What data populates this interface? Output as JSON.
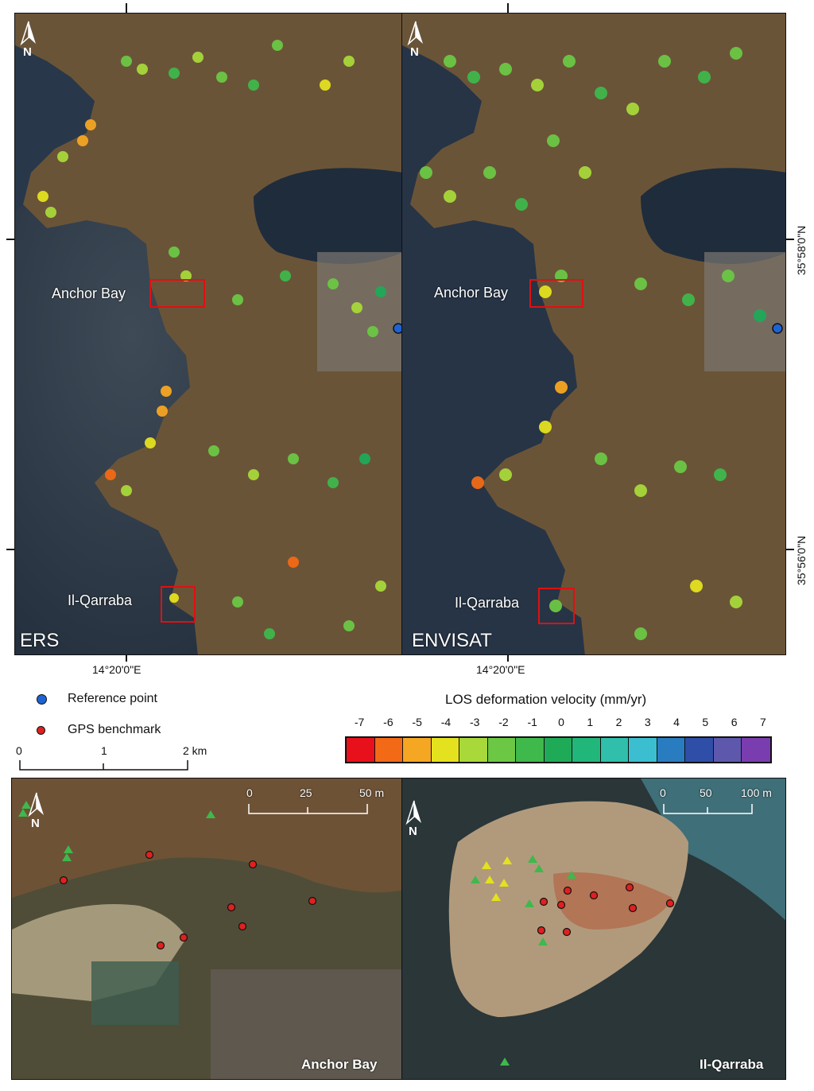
{
  "panels": {
    "ers": {
      "title": "ERS",
      "anchor_bay": "Anchor Bay",
      "qarraba": "Il-Qarraba",
      "lon_label": "14°20'0\"E"
    },
    "envisat": {
      "title": "ENVISAT",
      "anchor_bay": "Anchor Bay",
      "qarraba": "Il-Qarraba",
      "lon_label": "14°20'0\"E",
      "lat_label_top": "35°58'0\"N",
      "lat_label_bottom": "35°56'0\"N"
    }
  },
  "north_label": "N",
  "legend": {
    "reference_point": "Reference point",
    "gps_benchmark": "GPS benchmark",
    "velocity_title": "LOS deformation velocity (mm/yr)",
    "ticks": [
      "-7",
      "-6",
      "-5",
      "-4",
      "-3",
      "-2",
      "-1",
      "0",
      "1",
      "2",
      "3",
      "4",
      "5",
      "6",
      "7"
    ],
    "colors": [
      "#e8101a",
      "#f26a16",
      "#f5a623",
      "#e4e11f",
      "#a8d83a",
      "#6cc744",
      "#3fb84c",
      "#1faa58",
      "#22b77a",
      "#2fbfaa",
      "#3bbfd0",
      "#2a7cc0",
      "#2f4ea8",
      "#5e58ad",
      "#7a3db0"
    ],
    "reference_color": "#1e63d6",
    "gps_color": "#e02020"
  },
  "scale_main": {
    "labels": [
      "0",
      "1",
      "2 km"
    ]
  },
  "insets": {
    "anchor_bay": {
      "title": "Anchor Bay",
      "scale": [
        "0",
        "25",
        "50 m"
      ]
    },
    "qarraba": {
      "title": "Il-Qarraba",
      "scale": [
        "0",
        "50",
        "100 m"
      ]
    }
  }
}
